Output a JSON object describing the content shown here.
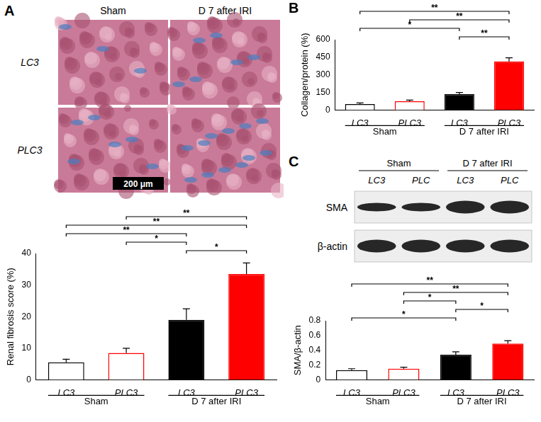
{
  "panel_labels": [
    "A",
    "B",
    "C"
  ],
  "images": {
    "columns": [
      "Sham",
      "D 7 after IRI"
    ],
    "rows": [
      "LC3",
      "PLC3"
    ],
    "scale_bar": "200 μm"
  },
  "blot": {
    "groups": [
      "Sham",
      "D 7 after IRI"
    ],
    "lanes": [
      "LC3",
      "PLC",
      "LC3",
      "PLC"
    ],
    "rows": [
      "SMA",
      "β-actin"
    ]
  },
  "chart_data": [
    {
      "type": "bar",
      "y_label": "Renal fibrosis score (%)",
      "categories": [
        "LC3",
        "PLC3",
        "LC3",
        "PLC3"
      ],
      "groups": [
        "Sham",
        "Sham",
        "D 7 after IRI",
        "D 7 after IRI"
      ],
      "values": [
        5.5,
        8.5,
        19,
        33.5
      ],
      "errors": [
        1,
        1.5,
        3.5,
        3.5
      ],
      "colors": [
        "#ffffff",
        "#ffffff",
        "#000000",
        "#ff0000"
      ],
      "ylim": [
        0,
        40
      ],
      "yticks": [
        0,
        10,
        20,
        30,
        40
      ],
      "grid": false,
      "significance": [
        {
          "from": 1,
          "to": 3,
          "label": "**"
        },
        {
          "from": 0,
          "to": 3,
          "label": "**"
        },
        {
          "from": 0,
          "to": 2,
          "label": "**"
        },
        {
          "from": 1,
          "to": 2,
          "label": "*"
        },
        {
          "from": 2,
          "to": 3,
          "label": "*"
        }
      ]
    },
    {
      "type": "bar",
      "y_label": "Collagen/protein (%)",
      "categories": [
        "LC3",
        "PLC3",
        "LC3",
        "PLC3"
      ],
      "groups": [
        "Sham",
        "Sham",
        "D 7 after IRI",
        "D 7 after IRI"
      ],
      "values": [
        50,
        75,
        135,
        415
      ],
      "errors": [
        10,
        10,
        15,
        30
      ],
      "colors": [
        "#ffffff",
        "#ffffff",
        "#000000",
        "#ff0000"
      ],
      "ylim": [
        0,
        600
      ],
      "yticks": [
        0,
        150,
        300,
        450,
        600
      ],
      "grid": false,
      "significance": [
        {
          "from": 0,
          "to": 3,
          "label": "**"
        },
        {
          "from": 1,
          "to": 3,
          "label": "**"
        },
        {
          "from": 0,
          "to": 2,
          "label": "*"
        },
        {
          "from": 2,
          "to": 3,
          "label": "**"
        }
      ]
    },
    {
      "type": "bar",
      "y_label": "SMA/β-actin",
      "categories": [
        "LC3",
        "PLC3",
        "LC3",
        "PLC3"
      ],
      "groups": [
        "Sham",
        "Sham",
        "D 7 after IRI",
        "D 7 after IRI"
      ],
      "values": [
        0.13,
        0.15,
        0.34,
        0.49
      ],
      "errors": [
        0.02,
        0.02,
        0.04,
        0.04
      ],
      "colors": [
        "#ffffff",
        "#ffffff",
        "#000000",
        "#ff0000"
      ],
      "ylim": [
        0,
        0.8
      ],
      "yticks": [
        0,
        0.2,
        0.4,
        0.6,
        0.8
      ],
      "grid": false,
      "significance": [
        {
          "from": 0,
          "to": 3,
          "label": "**"
        },
        {
          "from": 1,
          "to": 3,
          "label": "**"
        },
        {
          "from": 1,
          "to": 2,
          "label": "*"
        },
        {
          "from": 2,
          "to": 3,
          "label": "*"
        },
        {
          "from": 0,
          "to": 2,
          "label": "*"
        }
      ]
    }
  ]
}
